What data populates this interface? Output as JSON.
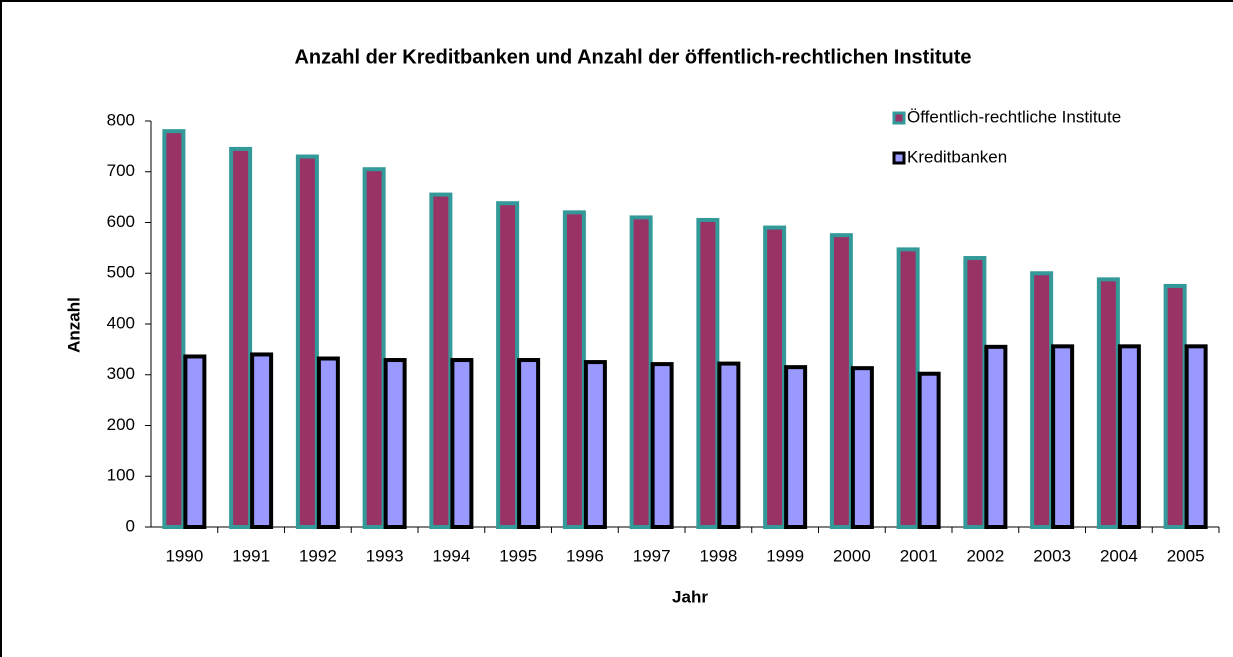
{
  "chart_data": {
    "type": "bar",
    "title": "Anzahl der Kreditbanken und Anzahl der öffentlich-rechtlichen Institute",
    "x_label": "Jahr",
    "y_label": "Anzahl",
    "categories": [
      "1990",
      "1991",
      "1992",
      "1993",
      "1994",
      "1995",
      "1996",
      "1997",
      "1998",
      "1999",
      "2000",
      "2001",
      "2002",
      "2003",
      "2004",
      "2005"
    ],
    "series": [
      {
        "name": "Öffentlich-rechtliche Institute",
        "color": "#993366",
        "edge_color": "#339999",
        "values": [
          780,
          745,
          730,
          705,
          655,
          638,
          620,
          610,
          605,
          590,
          575,
          547,
          530,
          500,
          488,
          475
        ]
      },
      {
        "name": "Kreditbanken",
        "color": "#9999ff",
        "edge_color": "#000000",
        "values": [
          336,
          340,
          332,
          329,
          329,
          329,
          325,
          321,
          322,
          315,
          313,
          302,
          355,
          356,
          356,
          356
        ]
      }
    ],
    "ylim": [
      0,
      800
    ],
    "yticks": [
      0,
      100,
      200,
      300,
      400,
      500,
      600,
      700,
      800
    ],
    "grid": false,
    "legend": "top-right"
  }
}
